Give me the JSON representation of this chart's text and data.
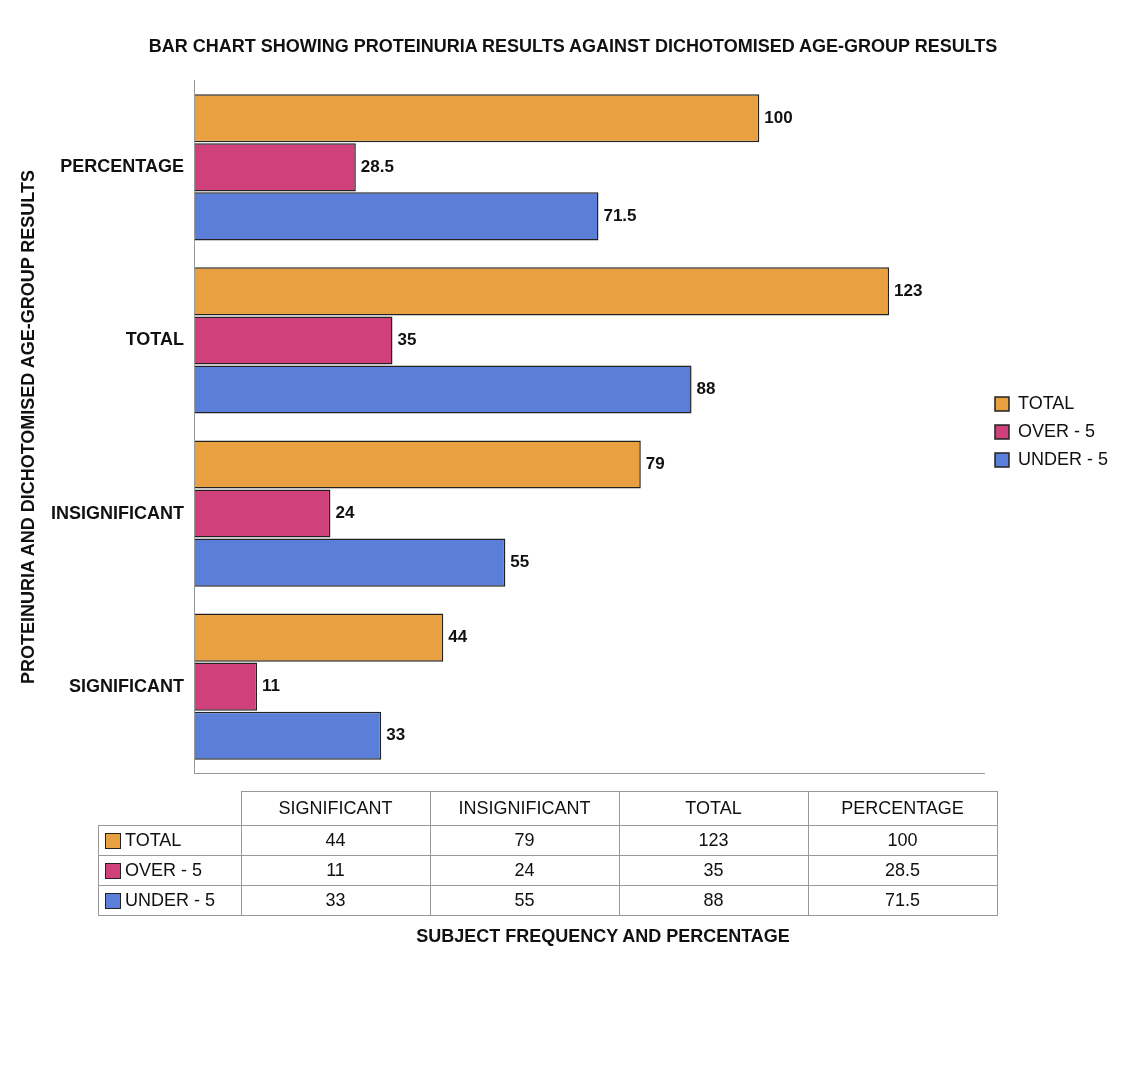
{
  "chart_data": {
    "type": "bar",
    "orientation": "horizontal",
    "title": "BAR CHART SHOWING PROTEINURIA RESULTS AGAINST DICHOTOMISED AGE-GROUP RESULTS",
    "annotations": [
      "SUBJECT FREQUENCY AND PERCENTAGE"
    ],
    "ylabel": "PROTEINURIA AND DICHOTOMISED AGE-GROUP RESULTS",
    "categories": [
      "PERCENTAGE",
      "TOTAL",
      "INSIGNIFICANT",
      "SIGNIFICANT"
    ],
    "series": [
      {
        "name": "TOTAL",
        "color": "#e8a040",
        "values": [
          100,
          123,
          79,
          44
        ],
        "value_labels": [
          "100",
          "123",
          "79",
          "44"
        ]
      },
      {
        "name": "OVER - 5",
        "color": "#d0407a",
        "values": [
          28.5,
          35,
          24,
          11
        ],
        "value_labels": [
          "28.5",
          "35",
          "24",
          "11"
        ]
      },
      {
        "name": "UNDER - 5",
        "color": "#5b7fd8",
        "values": [
          71.5,
          88,
          55,
          33
        ],
        "value_labels": [
          "71.5",
          "88",
          "55",
          "33"
        ]
      }
    ],
    "xlim": [
      0,
      140
    ],
    "legend": "right",
    "grid": false,
    "tick_labels": "y"
  }
}
